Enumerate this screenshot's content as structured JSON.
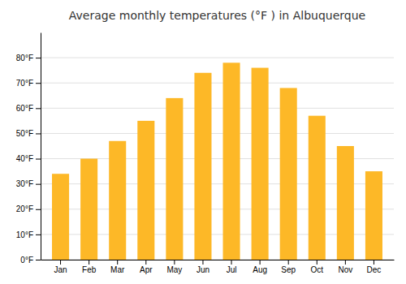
{
  "chart_data": {
    "type": "bar",
    "title": "Average monthly temperatures (°F ) in Albuquerque",
    "categories": [
      "Jan",
      "Feb",
      "Mar",
      "Apr",
      "May",
      "Jun",
      "Jul",
      "Aug",
      "Sep",
      "Oct",
      "Nov",
      "Dec"
    ],
    "values": [
      34,
      40,
      47,
      55,
      64,
      74,
      78,
      76,
      68,
      57,
      45,
      35
    ],
    "color": "#FDB827",
    "ylim": [
      0,
      90
    ],
    "yticks": [
      {
        "value": 0,
        "label": "0°F"
      },
      {
        "value": 10,
        "label": "10°F"
      },
      {
        "value": 20,
        "label": "20°F"
      },
      {
        "value": 30,
        "label": "30°F"
      },
      {
        "value": 40,
        "label": "40°F"
      },
      {
        "value": 50,
        "label": "50°F"
      },
      {
        "value": 60,
        "label": "60°F"
      },
      {
        "value": 70,
        "label": "70°F"
      },
      {
        "value": 80,
        "label": "80°F"
      }
    ],
    "grid": true
  }
}
